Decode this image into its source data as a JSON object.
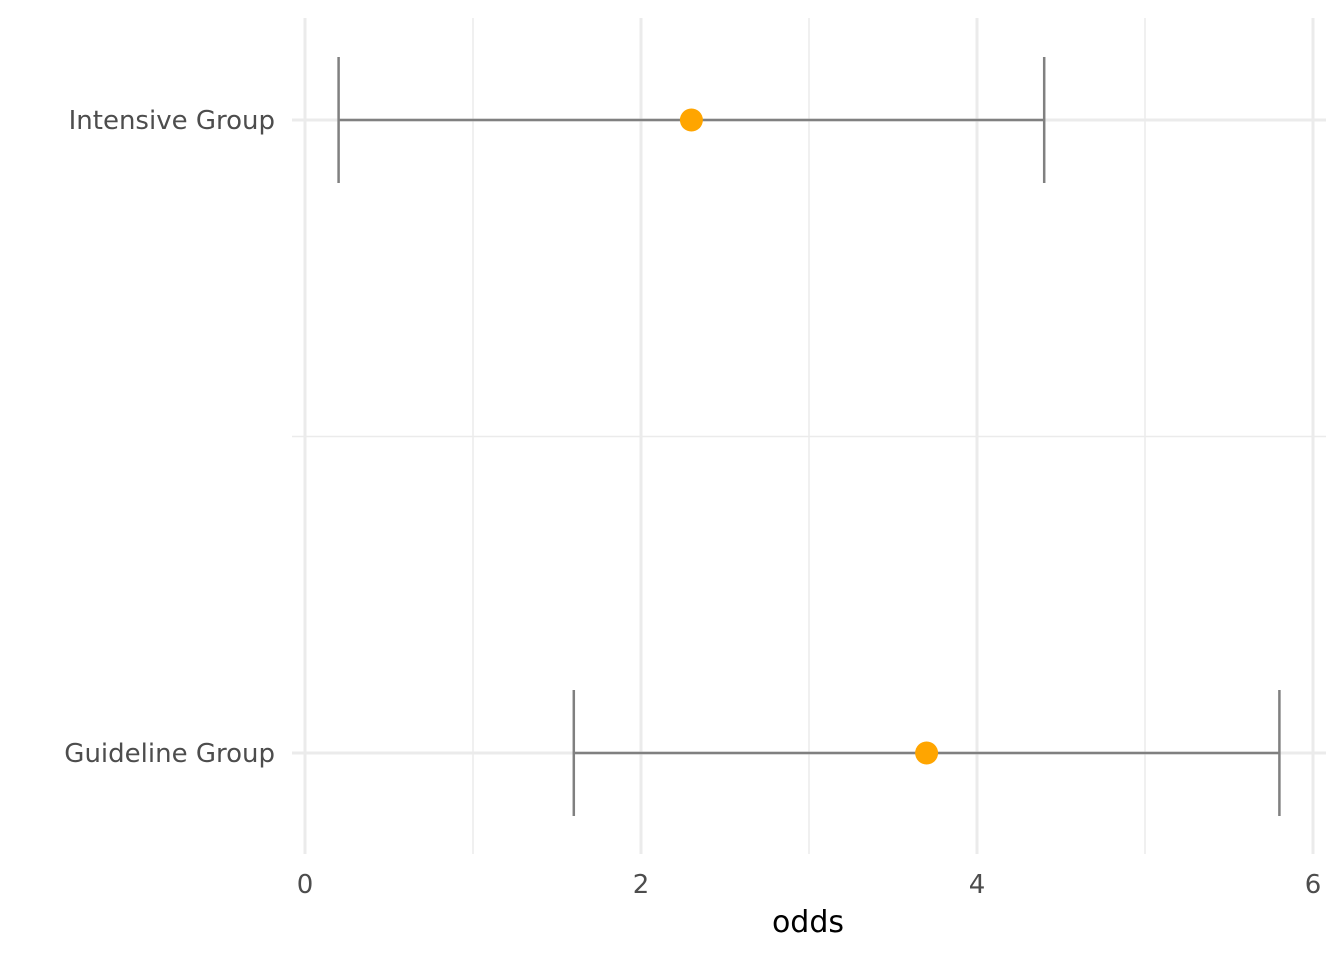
{
  "chart_data": {
    "type": "errorbar",
    "xlabel": "odds",
    "ylabel": "",
    "xlim": [
      0,
      6
    ],
    "x_ticks": [
      0,
      2,
      4,
      6
    ],
    "x_tick_labels": [
      "0",
      "2",
      "4",
      "6"
    ],
    "categories": [
      "Intensive Group",
      "Guideline Group"
    ],
    "points": [
      {
        "category": "Intensive Group",
        "estimate": 2.3,
        "lower": 0.2,
        "upper": 4.4
      },
      {
        "category": "Guideline Group",
        "estimate": 3.7,
        "lower": 1.6,
        "upper": 5.8
      }
    ],
    "grid": true,
    "legend": "none",
    "colors": {
      "point": "#FFA500",
      "errorbar": "#808080",
      "grid": "#ebebeb",
      "text": "#4d4d4d"
    }
  }
}
